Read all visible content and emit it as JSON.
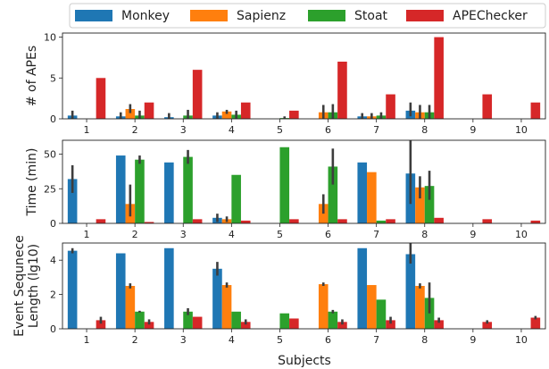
{
  "legend": {
    "placement": "top",
    "entries": [
      {
        "name": "Monkey",
        "color": "#1f77b4"
      },
      {
        "name": "Sapienz",
        "color": "#ff7f0e"
      },
      {
        "name": "Stoat",
        "color": "#2ca02c"
      },
      {
        "name": "APEChecker",
        "color": "#d62728"
      }
    ]
  },
  "chart_data": [
    {
      "type": "bar",
      "ylabel": "# of APEs",
      "xlabel": "",
      "ylim": [
        0,
        10.5
      ],
      "yticks": [
        0,
        5,
        10
      ],
      "categories": [
        "1",
        "2",
        "3",
        "4",
        "5",
        "6",
        "7",
        "8",
        "9",
        "10"
      ],
      "series": [
        {
          "name": "Monkey",
          "values": [
            0.4,
            0.3,
            0.2,
            0.4,
            0,
            0,
            0.3,
            1.0,
            0,
            0
          ],
          "err": [
            [
              0,
              1
            ],
            [
              0,
              0.8
            ],
            [
              0,
              0.7
            ],
            [
              0,
              0.8
            ],
            null,
            null,
            [
              0,
              0.7
            ],
            [
              0.3,
              2.0
            ],
            null,
            null
          ]
        },
        {
          "name": "Sapienz",
          "values": [
            0,
            1.2,
            0,
            0.9,
            0,
            0.8,
            0.3,
            0.8,
            0,
            0
          ],
          "err": [
            null,
            [
              0.7,
              1.8
            ],
            null,
            [
              0.6,
              1.1
            ],
            null,
            [
              0,
              1.7
            ],
            [
              0,
              0.7
            ],
            [
              0,
              1.7
            ],
            null,
            null
          ]
        },
        {
          "name": "Stoat",
          "values": [
            0,
            0.4,
            0.4,
            0.5,
            0.1,
            0.8,
            0.4,
            0.8,
            0,
            0
          ],
          "err": [
            null,
            [
              0,
              1
            ],
            [
              0,
              1.1
            ],
            [
              0,
              1
            ],
            [
              0,
              0.3
            ],
            [
              0,
              1.8
            ],
            [
              0,
              0.8
            ],
            [
              0,
              1.7
            ],
            null,
            null
          ]
        },
        {
          "name": "APEChecker",
          "values": [
            5,
            2,
            6,
            2,
            1,
            7,
            3,
            10,
            3,
            2
          ],
          "err": [
            null,
            null,
            null,
            null,
            null,
            null,
            null,
            null,
            null,
            null
          ]
        }
      ]
    },
    {
      "type": "bar",
      "ylabel": "Time (min)",
      "xlabel": "",
      "ylim": [
        0,
        60
      ],
      "yticks": [
        0,
        25,
        50
      ],
      "categories": [
        "1",
        "2",
        "3",
        "4",
        "5",
        "6",
        "7",
        "8",
        "9",
        "10"
      ],
      "series": [
        {
          "name": "Monkey",
          "values": [
            32,
            49,
            44,
            4,
            0,
            0,
            44,
            36,
            0,
            0
          ],
          "err": [
            [
              22,
              42
            ],
            null,
            null,
            [
              1,
              7
            ],
            null,
            null,
            null,
            [
              14,
              60
            ],
            null,
            null
          ]
        },
        {
          "name": "Sapienz",
          "values": [
            0,
            14,
            0,
            3,
            0,
            14,
            37,
            26,
            0,
            0
          ],
          "err": [
            null,
            [
              5,
              28
            ],
            null,
            [
              1,
              5
            ],
            null,
            [
              7,
              21
            ],
            null,
            [
              18,
              34
            ],
            null,
            null
          ]
        },
        {
          "name": "Stoat",
          "values": [
            0,
            46,
            48,
            35,
            55,
            41,
            2,
            27,
            0,
            0
          ],
          "err": [
            null,
            [
              43,
              49
            ],
            [
              43,
              53
            ],
            null,
            null,
            [
              28,
              54
            ],
            null,
            [
              17,
              38
            ],
            null,
            null
          ]
        },
        {
          "name": "APEChecker",
          "values": [
            3,
            1,
            3,
            2,
            3,
            3,
            3,
            4,
            3,
            2
          ],
          "err": [
            null,
            null,
            null,
            null,
            null,
            null,
            null,
            null,
            null,
            null
          ]
        }
      ]
    },
    {
      "type": "bar",
      "ylabel": "Event Sequnece Length (lg10)",
      "ylabel_lines": [
        "Event Sequnece",
        "Length (lg10)"
      ],
      "xlabel": "Subjects",
      "ylim": [
        0,
        5
      ],
      "yticks": [
        0,
        2,
        4
      ],
      "categories": [
        "1",
        "2",
        "3",
        "4",
        "5",
        "6",
        "7",
        "8",
        "9",
        "10"
      ],
      "series": [
        {
          "name": "Monkey",
          "values": [
            4.55,
            4.4,
            4.7,
            3.5,
            0,
            0,
            4.7,
            4.35,
            0,
            0
          ],
          "err": [
            [
              4.4,
              4.7
            ],
            null,
            null,
            [
              3.1,
              3.9
            ],
            null,
            null,
            null,
            [
              3.8,
              5
            ],
            null,
            null
          ]
        },
        {
          "name": "Sapienz",
          "values": [
            0,
            2.5,
            0,
            2.55,
            0,
            2.6,
            2.55,
            2.5,
            0,
            0
          ],
          "err": [
            null,
            [
              2.35,
              2.65
            ],
            null,
            [
              2.4,
              2.7
            ],
            null,
            [
              2.5,
              2.7
            ],
            null,
            [
              2.35,
              2.65
            ],
            null,
            null
          ]
        },
        {
          "name": "Stoat",
          "values": [
            0,
            1.0,
            1.0,
            1.0,
            0.9,
            1.0,
            1.7,
            1.8,
            0,
            0
          ],
          "err": [
            null,
            [
              0.95,
              1.05
            ],
            [
              0.8,
              1.2
            ],
            null,
            null,
            [
              0.9,
              1.1
            ],
            null,
            [
              0.9,
              2.7
            ],
            null,
            null
          ]
        },
        {
          "name": "APEChecker",
          "values": [
            0.5,
            0.4,
            0.7,
            0.4,
            0.6,
            0.4,
            0.5,
            0.5,
            0.4,
            0.65
          ],
          "err": [
            [
              0.3,
              0.7
            ],
            [
              0.25,
              0.55
            ],
            null,
            [
              0.25,
              0.55
            ],
            null,
            [
              0.25,
              0.55
            ],
            [
              0.3,
              0.7
            ],
            [
              0.35,
              0.65
            ],
            [
              0.3,
              0.5
            ],
            [
              0.55,
              0.75
            ]
          ]
        }
      ]
    }
  ]
}
